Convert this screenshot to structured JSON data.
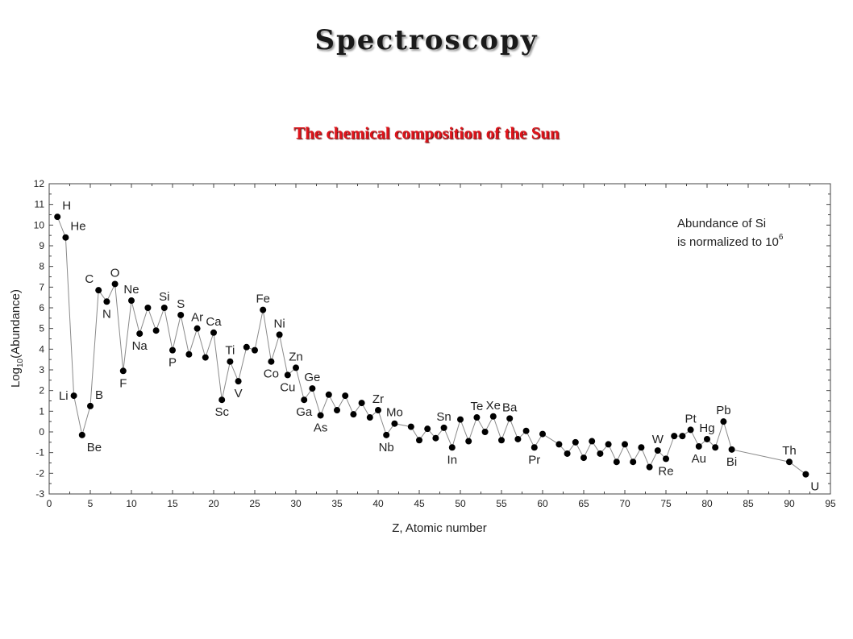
{
  "slide": {
    "title": "Spectroscopy"
  },
  "chart_data": {
    "type": "scatter",
    "title": "The chemical composition of the Sun",
    "xlabel": "Z, Atomic number",
    "ylabel": "Log10(Abundance)",
    "ylabel_parts": {
      "prefix": "Log",
      "subscript": "10",
      "suffix": "(Abundance)"
    },
    "annotation": {
      "line1": "Abundance of Si",
      "line2_prefix": "is normalized to 10",
      "line2_superscript": "6"
    },
    "xlim": [
      0,
      95
    ],
    "ylim": [
      -3,
      12
    ],
    "xticks": [
      0,
      5,
      10,
      15,
      20,
      25,
      30,
      35,
      40,
      45,
      50,
      55,
      60,
      65,
      70,
      75,
      80,
      85,
      90,
      95
    ],
    "yticks": [
      -3,
      -2,
      -1,
      0,
      1,
      2,
      3,
      4,
      5,
      6,
      7,
      8,
      9,
      10,
      11,
      12
    ],
    "grid": false,
    "connected": true,
    "points": [
      {
        "x": 1,
        "y": 10.4
      },
      {
        "x": 2,
        "y": 9.4
      },
      {
        "x": 3,
        "y": 1.75
      },
      {
        "x": 4,
        "y": -0.15
      },
      {
        "x": 5,
        "y": 1.25
      },
      {
        "x": 6,
        "y": 6.85
      },
      {
        "x": 7,
        "y": 6.3
      },
      {
        "x": 8,
        "y": 7.15
      },
      {
        "x": 9,
        "y": 2.95
      },
      {
        "x": 10,
        "y": 6.35
      },
      {
        "x": 11,
        "y": 4.75
      },
      {
        "x": 12,
        "y": 6.0
      },
      {
        "x": 13,
        "y": 4.9
      },
      {
        "x": 14,
        "y": 6.0
      },
      {
        "x": 15,
        "y": 3.95
      },
      {
        "x": 16,
        "y": 5.65
      },
      {
        "x": 17,
        "y": 3.75
      },
      {
        "x": 18,
        "y": 5.0
      },
      {
        "x": 19,
        "y": 3.6
      },
      {
        "x": 20,
        "y": 4.8
      },
      {
        "x": 21,
        "y": 1.55
      },
      {
        "x": 22,
        "y": 3.4
      },
      {
        "x": 23,
        "y": 2.45
      },
      {
        "x": 24,
        "y": 4.1
      },
      {
        "x": 25,
        "y": 3.95
      },
      {
        "x": 26,
        "y": 5.9
      },
      {
        "x": 27,
        "y": 3.4
      },
      {
        "x": 28,
        "y": 4.7
      },
      {
        "x": 29,
        "y": 2.75
      },
      {
        "x": 30,
        "y": 3.1
      },
      {
        "x": 31,
        "y": 1.55
      },
      {
        "x": 32,
        "y": 2.1
      },
      {
        "x": 33,
        "y": 0.8
      },
      {
        "x": 34,
        "y": 1.8
      },
      {
        "x": 35,
        "y": 1.05
      },
      {
        "x": 36,
        "y": 1.75
      },
      {
        "x": 37,
        "y": 0.85
      },
      {
        "x": 38,
        "y": 1.4
      },
      {
        "x": 39,
        "y": 0.7
      },
      {
        "x": 40,
        "y": 1.05
      },
      {
        "x": 41,
        "y": -0.15
      },
      {
        "x": 42,
        "y": 0.4
      },
      {
        "x": 44,
        "y": 0.25
      },
      {
        "x": 45,
        "y": -0.4
      },
      {
        "x": 46,
        "y": 0.15
      },
      {
        "x": 47,
        "y": -0.3
      },
      {
        "x": 48,
        "y": 0.2
      },
      {
        "x": 49,
        "y": -0.75
      },
      {
        "x": 50,
        "y": 0.6
      },
      {
        "x": 51,
        "y": -0.45
      },
      {
        "x": 52,
        "y": 0.7
      },
      {
        "x": 53,
        "y": 0.0
      },
      {
        "x": 54,
        "y": 0.75
      },
      {
        "x": 55,
        "y": -0.4
      },
      {
        "x": 56,
        "y": 0.65
      },
      {
        "x": 57,
        "y": -0.35
      },
      {
        "x": 58,
        "y": 0.05
      },
      {
        "x": 59,
        "y": -0.75
      },
      {
        "x": 60,
        "y": -0.1
      },
      {
        "x": 62,
        "y": -0.6
      },
      {
        "x": 63,
        "y": -1.05
      },
      {
        "x": 64,
        "y": -0.5
      },
      {
        "x": 65,
        "y": -1.25
      },
      {
        "x": 66,
        "y": -0.45
      },
      {
        "x": 67,
        "y": -1.05
      },
      {
        "x": 68,
        "y": -0.6
      },
      {
        "x": 69,
        "y": -1.45
      },
      {
        "x": 70,
        "y": -0.6
      },
      {
        "x": 71,
        "y": -1.45
      },
      {
        "x": 72,
        "y": -0.75
      },
      {
        "x": 73,
        "y": -1.7
      },
      {
        "x": 74,
        "y": -0.9
      },
      {
        "x": 75,
        "y": -1.3
      },
      {
        "x": 76,
        "y": -0.2
      },
      {
        "x": 77,
        "y": -0.2
      },
      {
        "x": 78,
        "y": 0.1
      },
      {
        "x": 79,
        "y": -0.7
      },
      {
        "x": 80,
        "y": -0.35
      },
      {
        "x": 81,
        "y": -0.75
      },
      {
        "x": 82,
        "y": 0.5
      },
      {
        "x": 83,
        "y": -0.85
      },
      {
        "x": 90,
        "y": -1.45
      },
      {
        "x": 92,
        "y": -2.05
      }
    ],
    "element_labels": [
      {
        "text": "H",
        "x": 1,
        "y": 10.4,
        "pos": "ne"
      },
      {
        "text": "He",
        "x": 2,
        "y": 9.4,
        "pos": "ne"
      },
      {
        "text": "Li",
        "x": 3,
        "y": 1.75,
        "pos": "w"
      },
      {
        "text": "Be",
        "x": 4,
        "y": -0.15,
        "pos": "se"
      },
      {
        "text": "B",
        "x": 5,
        "y": 1.25,
        "pos": "ne"
      },
      {
        "text": "C",
        "x": 6,
        "y": 6.85,
        "pos": "nw"
      },
      {
        "text": "N",
        "x": 7,
        "y": 6.3,
        "pos": "s"
      },
      {
        "text": "O",
        "x": 8,
        "y": 7.15,
        "pos": "n"
      },
      {
        "text": "F",
        "x": 9,
        "y": 2.95,
        "pos": "s"
      },
      {
        "text": "Ne",
        "x": 10,
        "y": 6.35,
        "pos": "n"
      },
      {
        "text": "Na",
        "x": 11,
        "y": 4.75,
        "pos": "s"
      },
      {
        "text": "Si",
        "x": 14,
        "y": 6.0,
        "pos": "n"
      },
      {
        "text": "P",
        "x": 15,
        "y": 3.95,
        "pos": "s"
      },
      {
        "text": "S",
        "x": 16,
        "y": 5.65,
        "pos": "n"
      },
      {
        "text": "Ar",
        "x": 18,
        "y": 5.0,
        "pos": "n"
      },
      {
        "text": "Ca",
        "x": 20,
        "y": 4.8,
        "pos": "n"
      },
      {
        "text": "Sc",
        "x": 21,
        "y": 1.55,
        "pos": "s"
      },
      {
        "text": "Ti",
        "x": 22,
        "y": 3.4,
        "pos": "n"
      },
      {
        "text": "V",
        "x": 23,
        "y": 2.45,
        "pos": "s"
      },
      {
        "text": "Fe",
        "x": 26,
        "y": 5.9,
        "pos": "n"
      },
      {
        "text": "Co",
        "x": 27,
        "y": 3.4,
        "pos": "s"
      },
      {
        "text": "Ni",
        "x": 28,
        "y": 4.7,
        "pos": "n"
      },
      {
        "text": "Cu",
        "x": 29,
        "y": 2.75,
        "pos": "s"
      },
      {
        "text": "Zn",
        "x": 30,
        "y": 3.1,
        "pos": "n"
      },
      {
        "text": "Ge",
        "x": 32,
        "y": 2.1,
        "pos": "n"
      },
      {
        "text": "Ga",
        "x": 31,
        "y": 1.55,
        "pos": "s"
      },
      {
        "text": "As",
        "x": 33,
        "y": 0.8,
        "pos": "s"
      },
      {
        "text": "Zr",
        "x": 40,
        "y": 1.05,
        "pos": "n"
      },
      {
        "text": "Nb",
        "x": 41,
        "y": -0.15,
        "pos": "s"
      },
      {
        "text": "Mo",
        "x": 42,
        "y": 0.4,
        "pos": "n"
      },
      {
        "text": "Sn",
        "x": 48,
        "y": 0.2,
        "pos": "n"
      },
      {
        "text": "In",
        "x": 49,
        "y": -0.75,
        "pos": "s"
      },
      {
        "text": "Te",
        "x": 52,
        "y": 0.7,
        "pos": "n"
      },
      {
        "text": "Xe",
        "x": 54,
        "y": 0.75,
        "pos": "n"
      },
      {
        "text": "Ba",
        "x": 56,
        "y": 0.65,
        "pos": "n"
      },
      {
        "text": "Pr",
        "x": 59,
        "y": -0.75,
        "pos": "s"
      },
      {
        "text": "W",
        "x": 74,
        "y": -0.9,
        "pos": "n"
      },
      {
        "text": "Re",
        "x": 75,
        "y": -1.3,
        "pos": "s"
      },
      {
        "text": "Pt",
        "x": 78,
        "y": 0.1,
        "pos": "n"
      },
      {
        "text": "Hg",
        "x": 80,
        "y": -0.35,
        "pos": "n"
      },
      {
        "text": "Au",
        "x": 79,
        "y": -0.7,
        "pos": "s"
      },
      {
        "text": "Pb",
        "x": 82,
        "y": 0.5,
        "pos": "n"
      },
      {
        "text": "Bi",
        "x": 83,
        "y": -0.85,
        "pos": "s"
      },
      {
        "text": "Th",
        "x": 90,
        "y": -1.45,
        "pos": "n"
      },
      {
        "text": "U",
        "x": 92,
        "y": -2.05,
        "pos": "se"
      }
    ]
  }
}
